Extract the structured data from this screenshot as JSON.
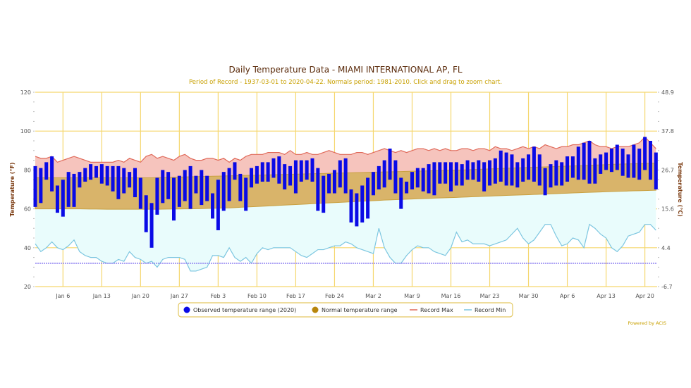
{
  "chart_data": {
    "type": "bar",
    "title": "Daily Temperature Data - MIAMI INTERNATIONAL AP, FL",
    "subtitle": "Period of Record - 1937-03-01 to 2020-04-22. Normals period: 1981-2010. Click and drag to zoom chart.",
    "ylabel": "Temperature (°F)",
    "ylabel_right": "Temperature (°C)",
    "ylim": [
      20,
      120
    ],
    "yticks": [
      20,
      40,
      60,
      80,
      100,
      120
    ],
    "yticks_right": [
      "-6.7",
      "4.4",
      "15.6",
      "26.7",
      "37.8",
      "48.9"
    ],
    "x_start": "Jan 1",
    "num_days": 113,
    "xtick_labels": [
      "Jan 6",
      "Jan 13",
      "Jan 20",
      "Jan 27",
      "Feb 3",
      "Feb 10",
      "Feb 17",
      "Feb 24",
      "Mar 2",
      "Mar 9",
      "Mar 16",
      "Mar 23",
      "Mar 30",
      "Apr 6",
      "Apr 13",
      "Apr 20"
    ],
    "xtick_day_index": [
      5,
      12,
      19,
      26,
      33,
      40,
      47,
      54,
      61,
      68,
      75,
      82,
      89,
      96,
      103,
      110
    ],
    "freezing_line": 32,
    "legend": [
      "Observed temperature range (2020)",
      "Normal temperature range",
      "Record Max",
      "Record Min"
    ],
    "colors": {
      "observed": "#0a0ae6",
      "normal": "#b8860b",
      "record_max": "#e06a5a",
      "record_min": "#7cc6e0",
      "grid": "#f5d76e"
    },
    "observed": [
      [
        61,
        82
      ],
      [
        63,
        81
      ],
      [
        75,
        84
      ],
      [
        69,
        87
      ],
      [
        58,
        72
      ],
      [
        56,
        75
      ],
      [
        61,
        79
      ],
      [
        61,
        78
      ],
      [
        71,
        79
      ],
      [
        74,
        81
      ],
      [
        75,
        83
      ],
      [
        76,
        82
      ],
      [
        73,
        83
      ],
      [
        72,
        82
      ],
      [
        69,
        82
      ],
      [
        65,
        82
      ],
      [
        68,
        81
      ],
      [
        71,
        79
      ],
      [
        66,
        81
      ],
      [
        60,
        76
      ],
      [
        48,
        67
      ],
      [
        40,
        63
      ],
      [
        57,
        76
      ],
      [
        63,
        80
      ],
      [
        65,
        79
      ],
      [
        54,
        76
      ],
      [
        61,
        77
      ],
      [
        64,
        80
      ],
      [
        60,
        82
      ],
      [
        68,
        77
      ],
      [
        62,
        80
      ],
      [
        64,
        77
      ],
      [
        55,
        68
      ],
      [
        49,
        75
      ],
      [
        59,
        79
      ],
      [
        64,
        81
      ],
      [
        75,
        84
      ],
      [
        64,
        78
      ],
      [
        59,
        76
      ],
      [
        71,
        81
      ],
      [
        73,
        82
      ],
      [
        74,
        84
      ],
      [
        74,
        84
      ],
      [
        76,
        86
      ],
      [
        73,
        87
      ],
      [
        70,
        83
      ],
      [
        72,
        82
      ],
      [
        68,
        85
      ],
      [
        74,
        85
      ],
      [
        75,
        85
      ],
      [
        74,
        86
      ],
      [
        59,
        81
      ],
      [
        58,
        77
      ],
      [
        68,
        78
      ],
      [
        68,
        80
      ],
      [
        71,
        85
      ],
      [
        68,
        86
      ],
      [
        53,
        70
      ],
      [
        51,
        68
      ],
      [
        53,
        72
      ],
      [
        55,
        76
      ],
      [
        67,
        79
      ],
      [
        70,
        82
      ],
      [
        71,
        85
      ],
      [
        75,
        91
      ],
      [
        68,
        85
      ],
      [
        60,
        76
      ],
      [
        68,
        74
      ],
      [
        70,
        79
      ],
      [
        71,
        81
      ],
      [
        69,
        81
      ],
      [
        68,
        83
      ],
      [
        67,
        84
      ],
      [
        73,
        84
      ],
      [
        73,
        84
      ],
      [
        69,
        84
      ],
      [
        72,
        84
      ],
      [
        72,
        83
      ],
      [
        75,
        85
      ],
      [
        75,
        84
      ],
      [
        74,
        85
      ],
      [
        69,
        84
      ],
      [
        72,
        85
      ],
      [
        73,
        86
      ],
      [
        74,
        90
      ],
      [
        72,
        89
      ],
      [
        72,
        88
      ],
      [
        71,
        84
      ],
      [
        74,
        86
      ],
      [
        75,
        88
      ],
      [
        74,
        92
      ],
      [
        72,
        88
      ],
      [
        67,
        81
      ],
      [
        71,
        83
      ],
      [
        72,
        85
      ],
      [
        72,
        84
      ],
      [
        74,
        87
      ],
      [
        76,
        87
      ],
      [
        75,
        92
      ],
      [
        75,
        94
      ],
      [
        73,
        95
      ],
      [
        73,
        86
      ],
      [
        78,
        88
      ],
      [
        80,
        89
      ],
      [
        79,
        91
      ],
      [
        80,
        93
      ],
      [
        77,
        91
      ],
      [
        76,
        88
      ],
      [
        76,
        93
      ],
      [
        75,
        91
      ],
      [
        80,
        97
      ],
      [
        75,
        95
      ],
      [
        70,
        89
      ]
    ],
    "record_max": [
      87,
      86,
      86,
      87,
      84,
      85,
      86,
      87,
      86,
      85,
      84,
      84,
      84,
      84,
      84,
      85,
      84,
      86,
      85,
      84,
      87,
      88,
      86,
      87,
      86,
      85,
      87,
      88,
      86,
      85,
      85,
      86,
      86,
      85,
      86,
      84,
      86,
      85,
      87,
      88,
      88,
      88,
      89,
      89,
      89,
      88,
      90,
      88,
      88,
      89,
      88,
      88,
      89,
      90,
      89,
      88,
      88,
      88,
      89,
      89,
      88,
      89,
      90,
      91,
      90,
      89,
      90,
      89,
      90,
      91,
      91,
      90,
      91,
      90,
      91,
      90,
      90,
      91,
      91,
      90,
      91,
      91,
      90,
      92,
      91,
      91,
      90,
      91,
      92,
      91,
      92,
      91,
      93,
      92,
      91,
      92,
      92,
      93,
      93,
      94,
      95,
      93,
      92,
      92,
      91,
      92,
      92,
      92,
      93,
      94,
      97,
      94,
      91
    ],
    "record_min": [
      42,
      38,
      40,
      43,
      40,
      39,
      41,
      44,
      38,
      36,
      35,
      35,
      33,
      32,
      32,
      34,
      33,
      38,
      35,
      34,
      32,
      33,
      30,
      34,
      35,
      35,
      35,
      34,
      28,
      28,
      29,
      30,
      36,
      36,
      35,
      40,
      35,
      33,
      35,
      32,
      37,
      40,
      39,
      40,
      40,
      40,
      40,
      38,
      36,
      35,
      37,
      39,
      39,
      40,
      41,
      41,
      43,
      42,
      40,
      39,
      38,
      37,
      50,
      40,
      35,
      32,
      32,
      36,
      39,
      41,
      40,
      40,
      38,
      37,
      36,
      40,
      48,
      43,
      44,
      42,
      42,
      42,
      41,
      42,
      43,
      44,
      47,
      50,
      45,
      42,
      44,
      48,
      52,
      52,
      46,
      41,
      42,
      45,
      44,
      40,
      52,
      50,
      47,
      45,
      40,
      38,
      41,
      46,
      47,
      48,
      52,
      52,
      49
    ],
    "normal_sample_every_days": 7,
    "normal_high": [
      76,
      76,
      76,
      76,
      76.5,
      77,
      77.5,
      78,
      78.5,
      79,
      79.5,
      80,
      80.8,
      81.5,
      82.2,
      83,
      83.5
    ],
    "normal_low": [
      60,
      60,
      59.8,
      59.8,
      60,
      60.5,
      61.5,
      62.5,
      63.5,
      64.5,
      65.3,
      66,
      66.8,
      67.5,
      68.3,
      69,
      69.6
    ]
  },
  "footer": {
    "powered_by": "Powered by ACIS"
  }
}
